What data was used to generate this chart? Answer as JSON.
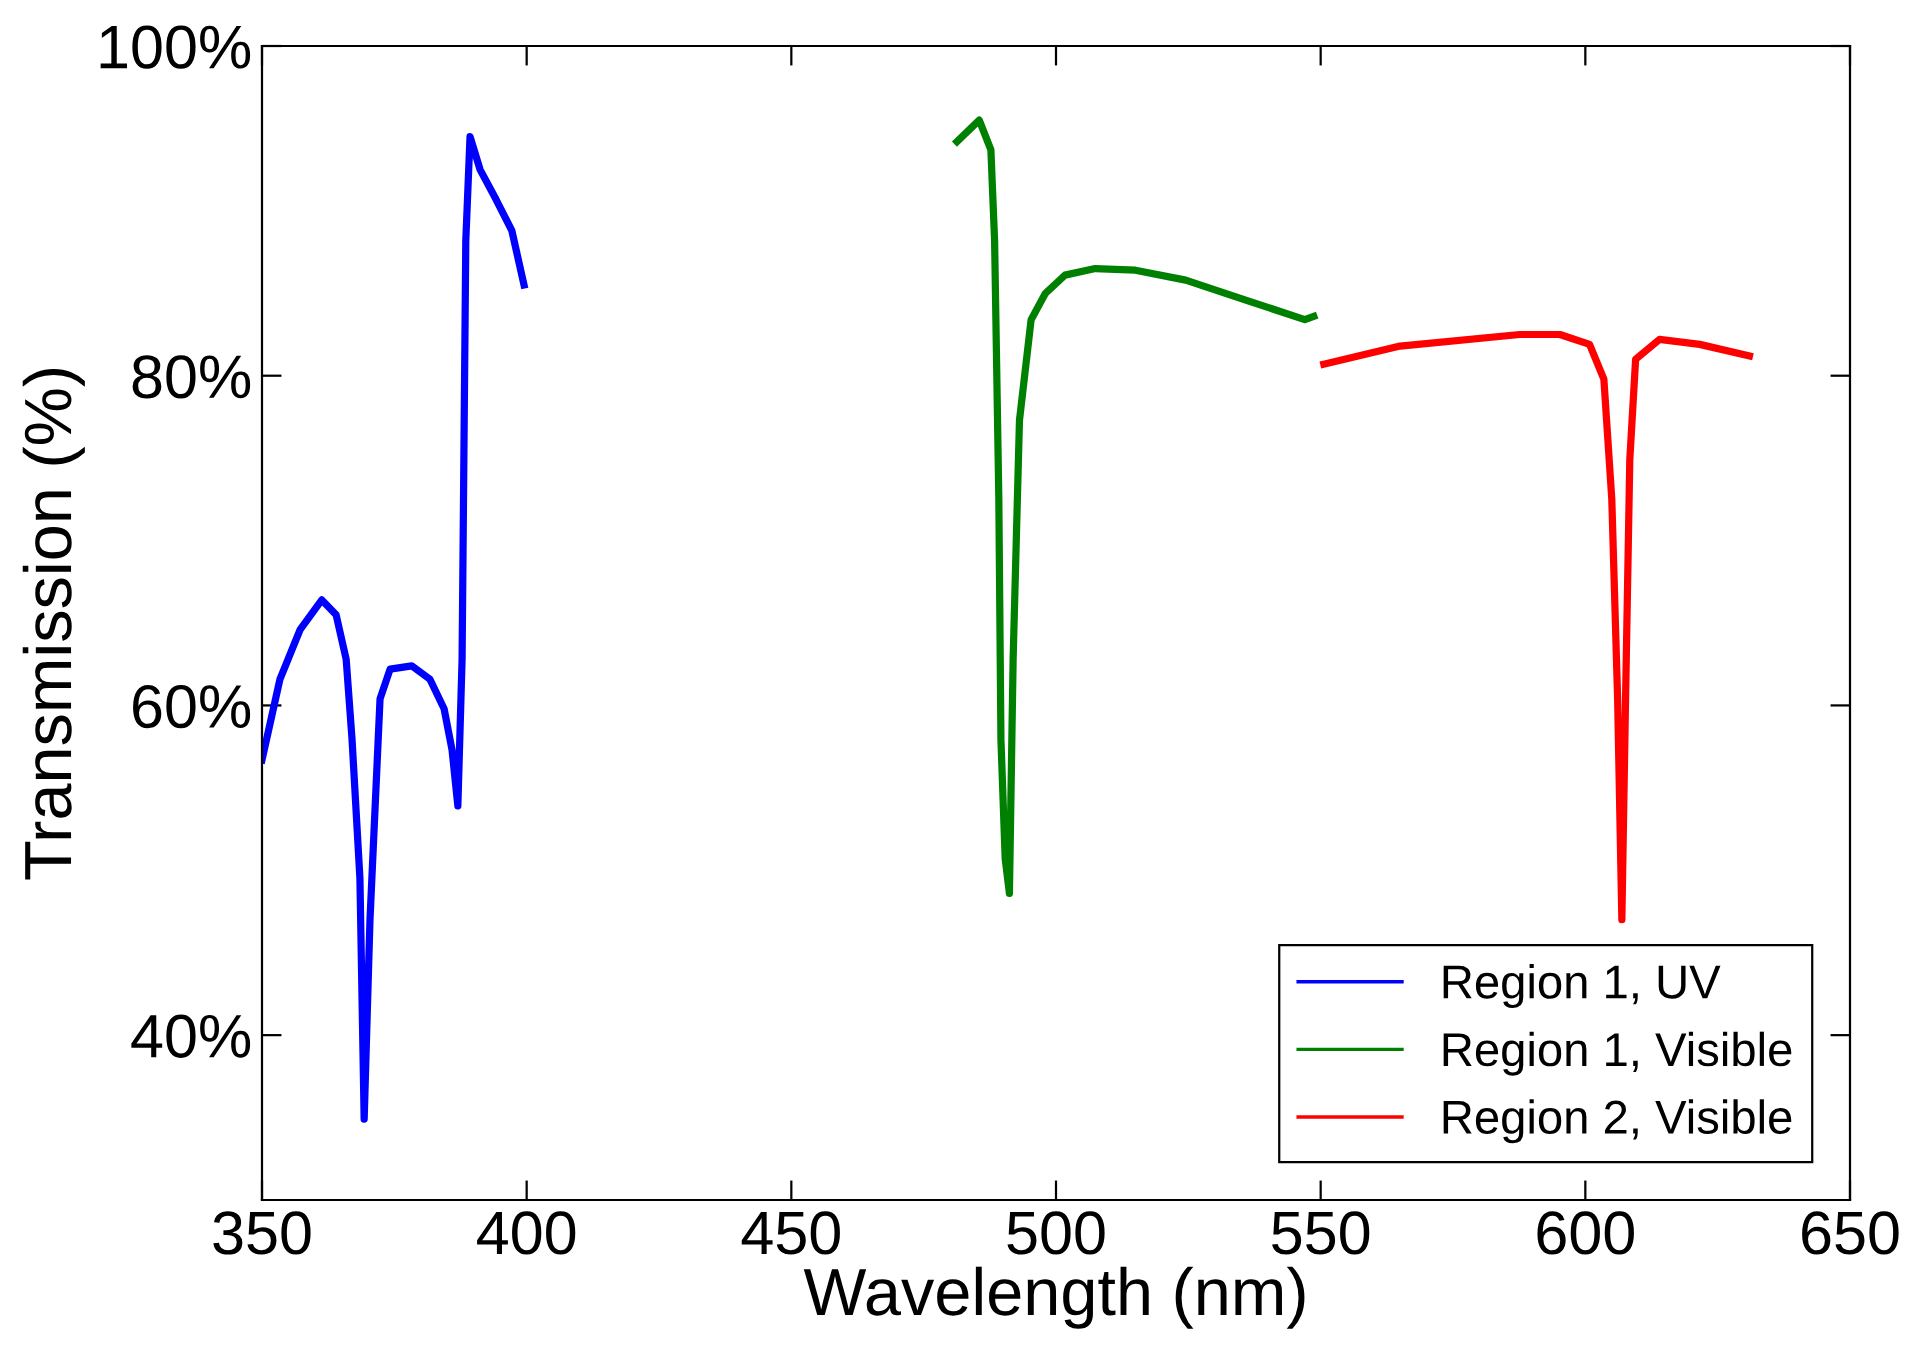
{
  "chart_data": {
    "type": "line",
    "xlabel": "Wavelength (nm)",
    "ylabel": "Transmission (%)",
    "xlim": [
      350,
      650
    ],
    "ylim": [
      30,
      100
    ],
    "xticks": [
      350,
      400,
      450,
      500,
      550,
      600,
      650
    ],
    "yticks": [
      {
        "value": 40,
        "label": "40%"
      },
      {
        "value": 60,
        "label": "60%"
      },
      {
        "value": 80,
        "label": "80%"
      },
      {
        "value": 100,
        "label": "100%"
      }
    ],
    "grid": false,
    "legend": "bottom right",
    "marker": "none",
    "line_style": "solid",
    "series": [
      {
        "name": "Region 1, UV",
        "color": "#0000ff",
        "x": [
          350,
          353.4,
          357.2,
          361.3,
          364,
          365.9,
          367,
          368.5,
          369.3,
          370.4,
          372.3,
          374.2,
          378.3,
          381.7,
          384.4,
          385.9,
          387,
          387.8,
          388.5,
          389.3,
          391.2,
          394.2,
          397.2,
          399.5
        ],
        "values": [
          56.7,
          61.6,
          64.6,
          66.4,
          65.5,
          62.8,
          58,
          49.5,
          34.9,
          47,
          60.4,
          62.2,
          62.4,
          61.6,
          59.8,
          57.3,
          53.9,
          62.8,
          88.2,
          94.5,
          92.5,
          90.7,
          88.8,
          85.5
        ]
      },
      {
        "name": "Region 1, Visible",
        "color": "#008000",
        "x": [
          481.3,
          485.5,
          487.7,
          488.4,
          489.2,
          489.6,
          490.4,
          491.2,
          491.9,
          493.1,
          495.3,
          498,
          501.7,
          507.4,
          515,
          524.5,
          535.7,
          547,
          548.7
        ],
        "values": [
          94.2,
          95.5,
          93.7,
          88.2,
          72.5,
          57.9,
          50.7,
          48.6,
          62.8,
          77.3,
          83.4,
          85,
          86.1,
          86.5,
          86.4,
          85.8,
          84.6,
          83.4,
          83.6
        ]
      },
      {
        "name": "Region 2, Visible",
        "color": "#ff0000",
        "x": [
          550.6,
          565,
          587.6,
          595.2,
          600.8,
          603.5,
          605,
          606.1,
          606.9,
          607.6,
          608.4,
          609.5,
          614,
          621.6,
          631
        ],
        "values": [
          80.7,
          81.8,
          82.5,
          82.5,
          81.9,
          79.8,
          72.5,
          60.4,
          47,
          60.4,
          74.9,
          81,
          82.2,
          81.9,
          81.2
        ]
      }
    ]
  }
}
